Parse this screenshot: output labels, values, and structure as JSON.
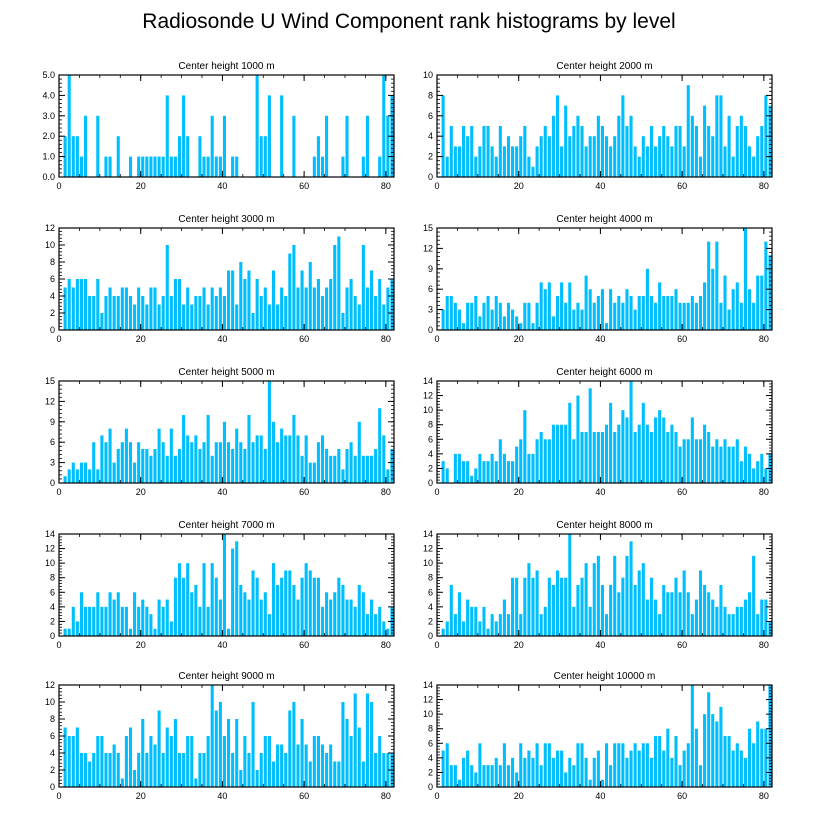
{
  "figure_title": "Radiosonde U Wind Component rank histograms by level",
  "bar_color": "#00BFFF",
  "chart_data": [
    {
      "type": "bar",
      "title": "Center height 1000 m",
      "xlim": [
        0,
        82
      ],
      "ylim": [
        0,
        5
      ],
      "xticks": [
        0,
        20,
        40,
        60,
        80
      ],
      "yticks": [
        0,
        1,
        2,
        3,
        4,
        5
      ],
      "ytick_labels": [
        "0.0",
        "1.0",
        "2.0",
        "3.0",
        "4.0",
        "5.0"
      ],
      "values": [
        0,
        2,
        5,
        2,
        2,
        1,
        3,
        0,
        0,
        3,
        0,
        1,
        1,
        0,
        2,
        0,
        0,
        1,
        0,
        1,
        1,
        1,
        1,
        1,
        1,
        1,
        4,
        1,
        1,
        2,
        4,
        2,
        0,
        0,
        2,
        1,
        1,
        3,
        1,
        1,
        3,
        0,
        1,
        1,
        0,
        0,
        0,
        0,
        5,
        2,
        2,
        4,
        0,
        0,
        4,
        0,
        0,
        3,
        0,
        0,
        0,
        0,
        1,
        2,
        1,
        3,
        0,
        0,
        0,
        1,
        3,
        0,
        0,
        0,
        1,
        3,
        0,
        0,
        1,
        5,
        3,
        4
      ]
    },
    {
      "type": "bar",
      "title": "Center height 2000 m",
      "xlim": [
        0,
        82
      ],
      "ylim": [
        0,
        10
      ],
      "xticks": [
        0,
        20,
        40,
        60,
        80
      ],
      "yticks": [
        0,
        2,
        4,
        6,
        8,
        10
      ],
      "values": [
        0,
        8,
        2,
        5,
        3,
        3,
        5,
        4,
        5,
        2,
        3,
        5,
        5,
        3,
        2,
        5,
        3,
        4,
        3,
        3,
        4,
        5,
        2,
        1,
        3,
        4,
        5,
        4,
        6,
        8,
        3,
        7,
        4,
        5,
        6,
        5,
        3,
        4,
        4,
        6,
        5,
        4,
        3,
        4,
        6,
        8,
        5,
        6,
        3,
        2,
        4,
        3,
        5,
        3,
        4,
        5,
        4,
        3,
        5,
        5,
        3,
        9,
        6,
        5,
        2,
        7,
        5,
        4,
        8,
        8,
        3,
        6,
        2,
        5,
        6,
        5,
        3,
        2,
        4,
        5,
        8,
        7
      ]
    },
    {
      "type": "bar",
      "title": "Center height 3000 m",
      "xlim": [
        0,
        82
      ],
      "ylim": [
        0,
        12
      ],
      "xticks": [
        0,
        20,
        40,
        60,
        80
      ],
      "yticks": [
        0,
        2,
        4,
        6,
        8,
        10,
        12
      ],
      "values": [
        0,
        5,
        6,
        5,
        6,
        6,
        6,
        4,
        4,
        6,
        2,
        4,
        5,
        4,
        4,
        5,
        5,
        4,
        3,
        5,
        4,
        3,
        5,
        5,
        3,
        4,
        10,
        4,
        6,
        6,
        3,
        5,
        3,
        4,
        4,
        5,
        3,
        5,
        4,
        5,
        4,
        7,
        7,
        3,
        8,
        6,
        7,
        2,
        6,
        4,
        5,
        3,
        7,
        3,
        5,
        4,
        9,
        10,
        5,
        7,
        5,
        8,
        5,
        6,
        4,
        5,
        6,
        10,
        11,
        2,
        5,
        6,
        4,
        3,
        10,
        5,
        7,
        4,
        6,
        3,
        5,
        6
      ]
    },
    {
      "type": "bar",
      "title": "Center height 4000 m",
      "xlim": [
        0,
        82
      ],
      "ylim": [
        0,
        15
      ],
      "xticks": [
        0,
        20,
        40,
        60,
        80
      ],
      "yticks": [
        0,
        3,
        6,
        9,
        12,
        15
      ],
      "values": [
        0,
        3,
        5,
        5,
        4,
        3,
        1,
        4,
        4,
        5,
        2,
        4,
        5,
        3,
        5,
        4,
        2,
        4,
        3,
        2,
        1,
        4,
        4,
        1,
        4,
        7,
        6,
        7,
        2,
        5,
        7,
        4,
        7,
        3,
        4,
        3,
        8,
        6,
        4,
        5,
        6,
        1,
        6,
        4,
        5,
        4,
        6,
        5,
        3,
        5,
        5,
        9,
        5,
        4,
        7,
        5,
        5,
        5,
        6,
        4,
        4,
        4,
        5,
        4,
        5,
        7,
        13,
        9,
        13,
        4,
        8,
        3,
        6,
        7,
        4,
        15,
        6,
        4,
        8,
        8,
        13,
        11
      ]
    },
    {
      "type": "bar",
      "title": "Center height 5000 m",
      "xlim": [
        0,
        82
      ],
      "ylim": [
        0,
        15
      ],
      "xticks": [
        0,
        20,
        40,
        60,
        80
      ],
      "yticks": [
        0,
        3,
        6,
        9,
        12,
        15
      ],
      "values": [
        0,
        1,
        2,
        3,
        2,
        3,
        3,
        2,
        6,
        2,
        7,
        6,
        8,
        3,
        5,
        6,
        8,
        6,
        3,
        6,
        5,
        5,
        4,
        5,
        8,
        6,
        4,
        8,
        4,
        5,
        10,
        7,
        6,
        7,
        5,
        6,
        10,
        4,
        6,
        6,
        9,
        6,
        5,
        8,
        6,
        5,
        10,
        6,
        7,
        7,
        5,
        15,
        9,
        6,
        8,
        7,
        7,
        10,
        7,
        4,
        7,
        3,
        3,
        6,
        7,
        5,
        4,
        4,
        5,
        2,
        5,
        6,
        4,
        9,
        4,
        4,
        4,
        5,
        11,
        7,
        2,
        5
      ]
    },
    {
      "type": "bar",
      "title": "Center height 6000 m",
      "xlim": [
        0,
        82
      ],
      "ylim": [
        0,
        14
      ],
      "xticks": [
        0,
        20,
        40,
        60,
        80
      ],
      "yticks": [
        0,
        2,
        4,
        6,
        8,
        10,
        12,
        14
      ],
      "values": [
        0,
        3,
        2,
        0,
        4,
        4,
        3,
        3,
        1,
        2,
        4,
        3,
        3,
        4,
        3,
        6,
        4,
        3,
        3,
        5,
        6,
        10,
        4,
        4,
        6,
        7,
        6,
        6,
        8,
        8,
        8,
        8,
        11,
        6,
        12,
        7,
        7,
        13,
        7,
        7,
        7,
        8,
        11,
        7,
        8,
        10,
        9,
        14,
        7,
        8,
        11,
        8,
        7,
        9,
        10,
        9,
        7,
        8,
        7,
        5,
        6,
        6,
        9,
        6,
        6,
        8,
        7,
        5,
        6,
        5,
        6,
        5,
        5,
        6,
        3,
        5,
        4,
        2,
        3,
        4,
        2,
        4
      ]
    },
    {
      "type": "bar",
      "title": "Center height 7000 m",
      "xlim": [
        0,
        82
      ],
      "ylim": [
        0,
        14
      ],
      "xticks": [
        0,
        20,
        40,
        60,
        80
      ],
      "yticks": [
        0,
        2,
        4,
        6,
        8,
        10,
        12,
        14
      ],
      "values": [
        0,
        1,
        1,
        4,
        2,
        6,
        4,
        4,
        4,
        6,
        4,
        4,
        6,
        5,
        6,
        4,
        4,
        1,
        6,
        4,
        5,
        4,
        3,
        1,
        5,
        4,
        5,
        2,
        8,
        10,
        8,
        10,
        6,
        7,
        4,
        10,
        4,
        10,
        8,
        5,
        14,
        1,
        12,
        13,
        7,
        6,
        5,
        9,
        8,
        5,
        6,
        3,
        10,
        7,
        8,
        9,
        9,
        7,
        5,
        8,
        10,
        9,
        8,
        8,
        4,
        6,
        5,
        6,
        8,
        7,
        5,
        5,
        4,
        7,
        6,
        3,
        5,
        3,
        4,
        2,
        1,
        4
      ]
    },
    {
      "type": "bar",
      "title": "Center height 8000 m",
      "xlim": [
        0,
        82
      ],
      "ylim": [
        0,
        14
      ],
      "xticks": [
        0,
        20,
        40,
        60,
        80
      ],
      "yticks": [
        0,
        2,
        4,
        6,
        8,
        10,
        12,
        14
      ],
      "values": [
        0,
        1,
        2,
        7,
        3,
        6,
        2,
        5,
        4,
        4,
        2,
        4,
        1,
        3,
        2,
        3,
        5,
        3,
        8,
        8,
        3,
        8,
        10,
        8,
        9,
        3,
        4,
        8,
        7,
        9,
        8,
        8,
        14,
        4,
        7,
        8,
        10,
        4,
        10,
        11,
        7,
        3,
        7,
        11,
        6,
        8,
        11,
        13,
        7,
        9,
        10,
        5,
        8,
        5,
        3,
        7,
        6,
        6,
        8,
        6,
        9,
        6,
        3,
        5,
        9,
        7,
        6,
        5,
        4,
        7,
        4,
        3,
        3,
        4,
        4,
        5,
        6,
        11,
        3,
        5,
        5,
        2
      ]
    },
    {
      "type": "bar",
      "title": "Center height 9000 m",
      "xlim": [
        0,
        82
      ],
      "ylim": [
        0,
        12
      ],
      "xticks": [
        0,
        20,
        40,
        60,
        80
      ],
      "yticks": [
        0,
        2,
        4,
        6,
        8,
        10,
        12
      ],
      "values": [
        0,
        7,
        6,
        6,
        7,
        4,
        4,
        3,
        4,
        6,
        6,
        4,
        4,
        5,
        4,
        1,
        6,
        7,
        2,
        4,
        8,
        4,
        6,
        5,
        9,
        4,
        7,
        6,
        8,
        4,
        4,
        6,
        6,
        1,
        4,
        4,
        6,
        12,
        9,
        10,
        6,
        8,
        4,
        8,
        2,
        6,
        4,
        10,
        2,
        4,
        6,
        6,
        3,
        5,
        5,
        4,
        9,
        10,
        5,
        8,
        5,
        3,
        6,
        6,
        5,
        4,
        5,
        3,
        3,
        10,
        8,
        6,
        11,
        7,
        3,
        11,
        10,
        4,
        6,
        4,
        4,
        4
      ]
    },
    {
      "type": "bar",
      "title": "Center height 10000 m",
      "xlim": [
        0,
        82
      ],
      "ylim": [
        0,
        14
      ],
      "xticks": [
        0,
        20,
        40,
        60,
        80
      ],
      "yticks": [
        0,
        2,
        4,
        6,
        8,
        10,
        12,
        14
      ],
      "values": [
        0,
        5,
        6,
        3,
        3,
        1,
        4,
        5,
        3,
        2,
        6,
        3,
        3,
        3,
        4,
        3,
        6,
        3,
        4,
        2,
        6,
        4,
        5,
        4,
        6,
        3,
        6,
        6,
        4,
        5,
        5,
        2,
        4,
        3,
        6,
        6,
        4,
        1,
        4,
        5,
        1,
        6,
        3,
        6,
        6,
        6,
        4,
        5,
        6,
        5,
        6,
        6,
        4,
        7,
        7,
        5,
        8,
        4,
        7,
        3,
        5,
        6,
        14,
        8,
        3,
        10,
        13,
        10,
        9,
        11,
        7,
        7,
        5,
        6,
        5,
        4,
        8,
        6,
        9,
        8,
        8,
        14
      ]
    }
  ]
}
